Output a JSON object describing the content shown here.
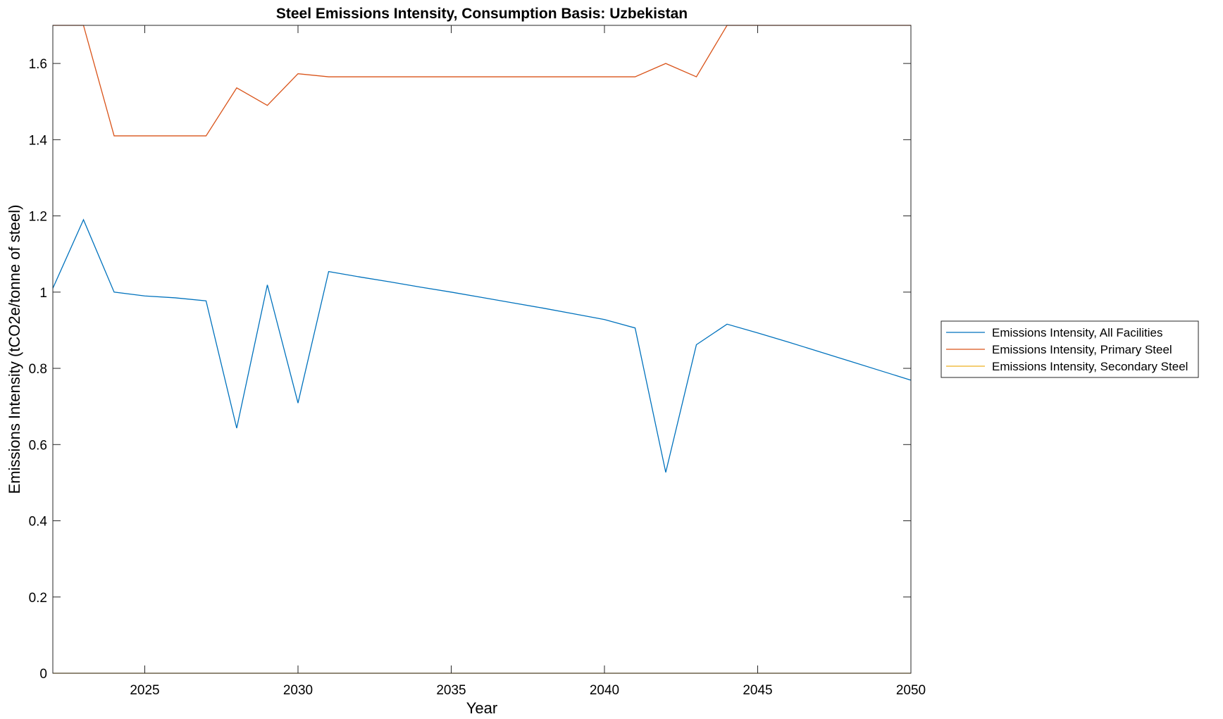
{
  "chart_data": {
    "type": "line",
    "title": "Steel Emissions Intensity, Consumption Basis: Uzbekistan",
    "xlabel": "Year",
    "ylabel": "Emissions Intensity (tCO2e/tonne of steel)",
    "xlim": [
      2022,
      2050
    ],
    "ylim": [
      0,
      1.7
    ],
    "x_ticks": [
      2025,
      2030,
      2035,
      2040,
      2045,
      2050
    ],
    "y_ticks": [
      0,
      0.2,
      0.4,
      0.6,
      0.8,
      1,
      1.2,
      1.4,
      1.6
    ],
    "x_tick_labels": [
      "2025",
      "2030",
      "2035",
      "2040",
      "2045",
      "2050"
    ],
    "y_tick_labels": [
      "0",
      "0.2",
      "0.4",
      "0.6",
      "0.8",
      "1",
      "1.2",
      "1.4",
      "1.6"
    ],
    "grid": false,
    "legend_placement": "outside-right",
    "x": [
      2022,
      2023,
      2024,
      2025,
      2026,
      2027,
      2028,
      2029,
      2030,
      2031,
      2032,
      2033,
      2034,
      2035,
      2036,
      2037,
      2038,
      2039,
      2040,
      2041,
      2042,
      2043,
      2044,
      2045,
      2046,
      2047,
      2048,
      2049,
      2050
    ],
    "series": [
      {
        "name": "Emissions Intensity, All Facilities",
        "color": "#0072BD",
        "values": [
          1.01,
          1.19,
          1.0,
          0.99,
          0.985,
          0.977,
          0.643,
          1.019,
          0.709,
          1.054,
          1.04,
          1.027,
          1.013,
          1.0,
          0.986,
          0.972,
          0.958,
          0.943,
          0.928,
          0.906,
          0.527,
          0.862,
          0.916,
          0.893,
          0.869,
          0.844,
          0.819,
          0.794,
          0.769
        ]
      },
      {
        "name": "Emissions Intensity, Primary Steel",
        "color": "#D95319",
        "values": [
          1.7,
          1.7,
          1.41,
          1.41,
          1.41,
          1.41,
          1.536,
          1.49,
          1.573,
          1.565,
          1.565,
          1.565,
          1.565,
          1.565,
          1.565,
          1.565,
          1.565,
          1.565,
          1.565,
          1.565,
          1.6,
          1.565,
          1.7,
          1.7,
          1.7,
          1.7,
          1.7,
          1.7,
          1.7
        ]
      },
      {
        "name": "Emissions Intensity, Secondary Steel",
        "color": "#EDB120",
        "values": [
          0,
          0,
          0,
          0,
          0,
          0,
          0,
          0,
          0,
          0,
          0,
          0,
          0,
          0,
          0,
          0,
          0,
          0,
          0,
          0,
          0,
          0,
          0,
          0,
          0,
          0,
          0,
          0,
          0
        ]
      }
    ]
  }
}
